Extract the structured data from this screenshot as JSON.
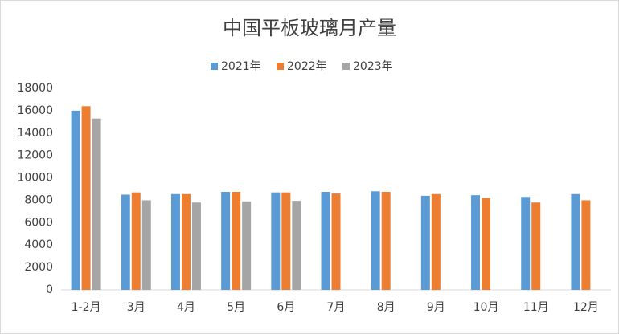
{
  "chart_data": {
    "type": "bar",
    "title": "中国平板玻璃月产量",
    "categories": [
      "1-2月",
      "3月",
      "4月",
      "5月",
      "6月",
      "7月",
      "8月",
      "9月",
      "10月",
      "11月",
      "12月"
    ],
    "series": [
      {
        "name": "2021年",
        "color": "#5b9bd5",
        "values": [
          16000,
          8500,
          8550,
          8750,
          8700,
          8750,
          8800,
          8400,
          8450,
          8300,
          8550
        ]
      },
      {
        "name": "2022年",
        "color": "#ed7d31",
        "values": [
          16400,
          8700,
          8550,
          8750,
          8700,
          8600,
          8750,
          8550,
          8200,
          7800,
          8000
        ]
      },
      {
        "name": "2023年",
        "color": "#a5a5a5",
        "values": [
          15300,
          8000,
          7800,
          7900,
          7950,
          null,
          null,
          null,
          null,
          null,
          null
        ]
      }
    ],
    "ylim": [
      0,
      18000
    ],
    "yticks": [
      0,
      2000,
      4000,
      6000,
      8000,
      10000,
      12000,
      14000,
      16000,
      18000
    ],
    "grid": false,
    "legend": "top"
  }
}
